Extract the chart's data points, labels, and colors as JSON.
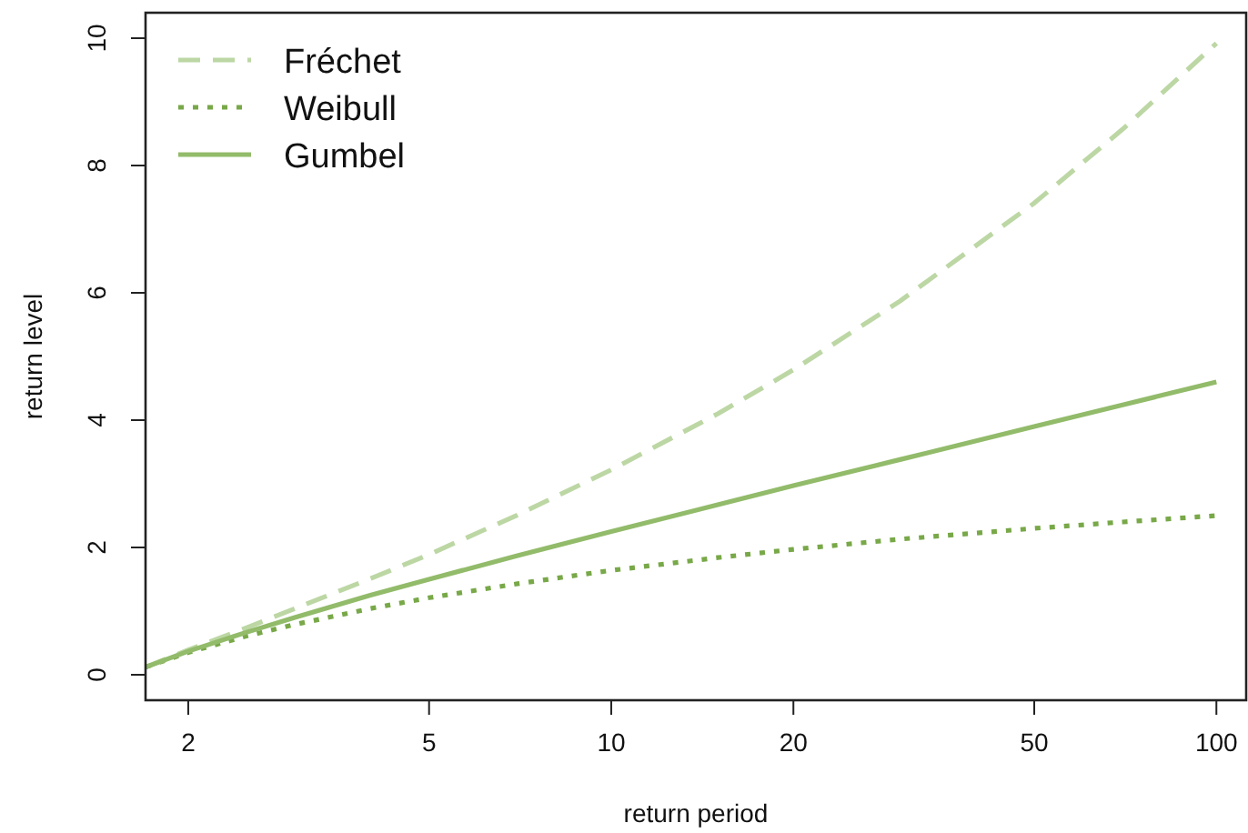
{
  "chart_data": {
    "type": "line",
    "xlabel": "return period",
    "ylabel": "return level",
    "x": [
      1.7,
      2,
      2.5,
      3,
      4,
      5,
      7,
      10,
      15,
      20,
      30,
      50,
      70,
      100
    ],
    "series": [
      {
        "name": "Fréchet",
        "color": "#bcd7a4",
        "line_style": "dashed",
        "values": [
          0.12,
          0.39,
          0.74,
          1.04,
          1.51,
          1.89,
          2.51,
          3.22,
          4.1,
          4.79,
          5.87,
          7.41,
          8.57,
          9.92
        ]
      },
      {
        "name": "Weibull",
        "color": "#78a848",
        "line_style": "dotted",
        "values": [
          0.12,
          0.35,
          0.61,
          0.79,
          1.04,
          1.21,
          1.43,
          1.64,
          1.84,
          1.97,
          2.13,
          2.3,
          2.4,
          2.5
        ]
      },
      {
        "name": "Gumbel",
        "color": "#92bb6a",
        "line_style": "solid",
        "values": [
          0.12,
          0.37,
          0.67,
          0.9,
          1.25,
          1.5,
          1.87,
          2.25,
          2.67,
          2.97,
          3.38,
          3.9,
          4.24,
          4.6
        ]
      }
    ],
    "log": "x",
    "xlim": [
      1.7,
      112
    ],
    "xticks": [
      2,
      5,
      10,
      20,
      50,
      100
    ],
    "ylim": [
      -0.4,
      10.4
    ],
    "yticks": [
      0,
      2,
      4,
      6,
      8,
      10
    ],
    "legend": "top left",
    "grid": false,
    "marker": "none"
  }
}
